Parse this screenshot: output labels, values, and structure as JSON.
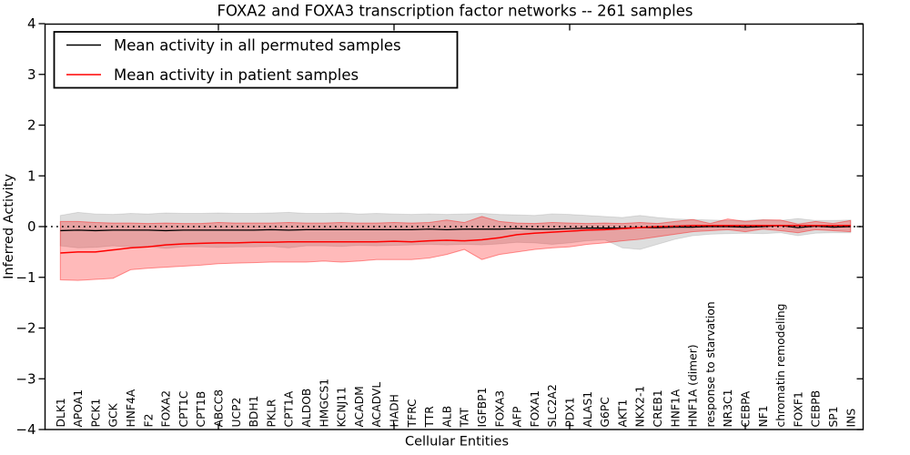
{
  "figure": {
    "title": "FOXA2 and FOXA3 transcription factor networks -- 261 samples",
    "background": "#ffffff",
    "accent_red": "#ff0000",
    "accent_black": "#000000"
  },
  "legend": {
    "entries": [
      {
        "label": "Mean activity in all permuted samples",
        "color": "#000000"
      },
      {
        "label": "Mean activity in patient samples",
        "color": "#ff0000"
      }
    ],
    "position": "upper left"
  },
  "chart_data": {
    "type": "line",
    "title": "FOXA2 and FOXA3 transcription factor networks -- 261 samples",
    "xlabel": "Cellular Entities",
    "ylabel": "Inferred Activity",
    "ylim": [
      -4,
      4
    ],
    "yticks": [
      -4,
      -3,
      -2,
      -1,
      0,
      1,
      2,
      3,
      4
    ],
    "xticks_major": [
      10,
      20,
      30,
      40
    ],
    "grid": false,
    "zero_line": {
      "y": 0,
      "style": "dotted",
      "color": "#000000"
    },
    "categories": [
      "DLK1",
      "APOA1",
      "PCK1",
      "GCK",
      "HNF4A",
      "F2",
      "FOXA2",
      "CPT1C",
      "CPT1B",
      "ABCC8",
      "UCP2",
      "BDH1",
      "PKLR",
      "CPT1A",
      "ALDOB",
      "HMGCS1",
      "KCNJ11",
      "ACADM",
      "ACADVL",
      "HADH",
      "TFRC",
      "TTR",
      "ALB",
      "TAT",
      "IGFBP1",
      "FOXA3",
      "AFP",
      "FOXA1",
      "SLC2A2",
      "PDX1",
      "ALAS1",
      "G6PC",
      "AKT1",
      "NKX2-1",
      "CREB1",
      "HNF1A",
      "HNF1A (dimer)",
      "response to starvation",
      "NR3C1",
      "CEBPA",
      "NF1",
      "chromatin remodeling",
      "FOXF1",
      "CEBPB",
      "SP1",
      "INS"
    ],
    "series": [
      {
        "name": "Mean activity in all permuted samples",
        "color": "#000000",
        "values": [
          -0.08,
          -0.07,
          -0.08,
          -0.07,
          -0.07,
          -0.07,
          -0.08,
          -0.07,
          -0.07,
          -0.07,
          -0.07,
          -0.07,
          -0.06,
          -0.07,
          -0.06,
          -0.06,
          -0.06,
          -0.06,
          -0.06,
          -0.06,
          -0.06,
          -0.05,
          -0.06,
          -0.05,
          -0.05,
          -0.05,
          -0.04,
          -0.05,
          -0.05,
          -0.04,
          -0.03,
          -0.03,
          -0.03,
          -0.02,
          -0.02,
          -0.01,
          -0.01,
          0.0,
          0.0,
          -0.01,
          0.0,
          0.02,
          -0.02,
          0.01,
          -0.01,
          0.0
        ]
      },
      {
        "name": "Mean activity in patient samples",
        "color": "#ff0000",
        "values": [
          -0.52,
          -0.5,
          -0.5,
          -0.46,
          -0.42,
          -0.4,
          -0.36,
          -0.34,
          -0.33,
          -0.32,
          -0.32,
          -0.31,
          -0.31,
          -0.3,
          -0.3,
          -0.3,
          -0.3,
          -0.3,
          -0.3,
          -0.29,
          -0.3,
          -0.28,
          -0.27,
          -0.28,
          -0.26,
          -0.22,
          -0.16,
          -0.13,
          -0.11,
          -0.09,
          -0.07,
          -0.06,
          -0.04,
          -0.02,
          0.0,
          0.01,
          0.02,
          0.02,
          0.02,
          0.02,
          0.02,
          0.02,
          0.02,
          0.02,
          0.02,
          0.02
        ]
      }
    ],
    "bands": [
      {
        "name": "permuted-samples-range",
        "fill": "rgba(0,0,0,0.13)",
        "edge": "rgba(0,0,0,0.10)",
        "upper": [
          0.22,
          0.28,
          0.25,
          0.24,
          0.26,
          0.25,
          0.27,
          0.26,
          0.26,
          0.27,
          0.26,
          0.26,
          0.27,
          0.28,
          0.26,
          0.26,
          0.27,
          0.25,
          0.26,
          0.25,
          0.24,
          0.25,
          0.24,
          0.25,
          0.26,
          0.24,
          0.23,
          0.22,
          0.25,
          0.24,
          0.22,
          0.2,
          0.18,
          0.22,
          0.18,
          0.15,
          0.14,
          0.13,
          0.12,
          0.12,
          0.14,
          0.12,
          0.16,
          0.12,
          0.12,
          0.13
        ],
        "lower": [
          -0.38,
          -0.42,
          -0.41,
          -0.38,
          -0.4,
          -0.39,
          -0.43,
          -0.4,
          -0.4,
          -0.41,
          -0.4,
          -0.4,
          -0.39,
          -0.42,
          -0.38,
          -0.38,
          -0.39,
          -0.37,
          -0.38,
          -0.37,
          -0.36,
          -0.35,
          -0.36,
          -0.35,
          -0.36,
          -0.34,
          -0.31,
          -0.32,
          -0.35,
          -0.32,
          -0.28,
          -0.26,
          -0.42,
          -0.45,
          -0.35,
          -0.25,
          -0.18,
          -0.15,
          -0.14,
          -0.13,
          -0.14,
          -0.12,
          -0.18,
          -0.13,
          -0.12,
          -0.12
        ]
      },
      {
        "name": "patient-samples-range",
        "fill": "rgba(255,0,0,0.27)",
        "edge": "rgba(255,0,0,0.40)",
        "upper": [
          0.1,
          0.1,
          0.08,
          0.07,
          0.07,
          0.06,
          0.07,
          0.06,
          0.06,
          0.08,
          0.07,
          0.07,
          0.07,
          0.08,
          0.07,
          0.07,
          0.08,
          0.07,
          0.07,
          0.08,
          0.07,
          0.08,
          0.13,
          0.08,
          0.2,
          0.1,
          0.07,
          0.06,
          0.08,
          0.07,
          0.06,
          0.07,
          0.06,
          0.08,
          0.06,
          0.1,
          0.14,
          0.06,
          0.15,
          0.1,
          0.13,
          0.13,
          0.05,
          0.1,
          0.06,
          0.12
        ],
        "lower": [
          -1.05,
          -1.06,
          -1.04,
          -1.02,
          -0.85,
          -0.82,
          -0.8,
          -0.78,
          -0.76,
          -0.73,
          -0.72,
          -0.71,
          -0.7,
          -0.7,
          -0.7,
          -0.68,
          -0.7,
          -0.68,
          -0.65,
          -0.65,
          -0.65,
          -0.62,
          -0.55,
          -0.45,
          -0.65,
          -0.55,
          -0.5,
          -0.45,
          -0.42,
          -0.4,
          -0.35,
          -0.32,
          -0.28,
          -0.25,
          -0.2,
          -0.15,
          -0.1,
          -0.08,
          -0.06,
          -0.1,
          -0.05,
          -0.08,
          -0.12,
          -0.06,
          -0.08,
          -0.1
        ]
      }
    ]
  }
}
